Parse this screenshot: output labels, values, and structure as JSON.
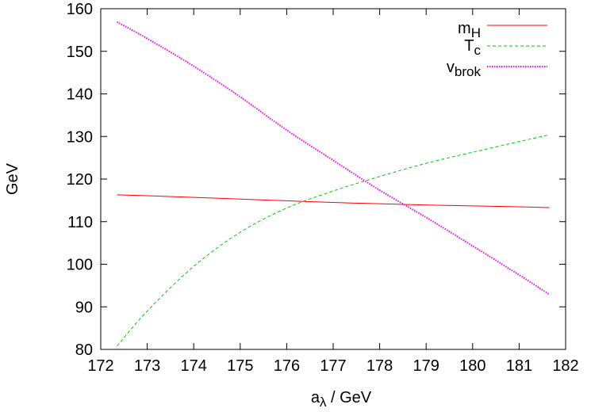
{
  "chart_data": {
    "type": "line",
    "title": "",
    "xlabel": "a",
    "xlabel_sub": "λ",
    "xlabel_rest": " / GeV",
    "ylabel": "GeV",
    "xlim": [
      172,
      182
    ],
    "ylim": [
      80,
      160
    ],
    "xticks": [
      172,
      173,
      174,
      175,
      176,
      177,
      178,
      179,
      180,
      181,
      182
    ],
    "yticks": [
      80,
      90,
      100,
      110,
      120,
      130,
      140,
      150,
      160
    ],
    "grid": false,
    "legend_position": "top-right",
    "series": [
      {
        "name": "m",
        "name_sub": "H",
        "color": "#ff0000",
        "style": "solid",
        "x": [
          172.35,
          173,
          174,
          175,
          176,
          177,
          178,
          179,
          180,
          181,
          181.65
        ],
        "y": [
          116.3,
          116.1,
          115.7,
          115.3,
          114.9,
          114.5,
          114.2,
          113.9,
          113.7,
          113.5,
          113.3
        ]
      },
      {
        "name": "T",
        "name_sub": "c",
        "color": "#00cc00",
        "style": "dashed",
        "x": [
          172.35,
          173,
          174,
          175,
          176,
          177,
          178,
          179,
          180,
          181,
          181.65
        ],
        "y": [
          80.8,
          89.0,
          99.5,
          107.5,
          113.2,
          117.2,
          120.6,
          123.7,
          126.3,
          128.8,
          130.4
        ]
      },
      {
        "name": "v",
        "name_sub": "brok",
        "color": "#ff00ff",
        "style": "dotted",
        "x": [
          172.35,
          173,
          174,
          175,
          176,
          177,
          178,
          179,
          180,
          181,
          181.65
        ],
        "y": [
          156.9,
          153.0,
          146.5,
          139.3,
          131.5,
          124.4,
          117.4,
          111.0,
          104.3,
          97.5,
          92.9
        ]
      }
    ]
  }
}
